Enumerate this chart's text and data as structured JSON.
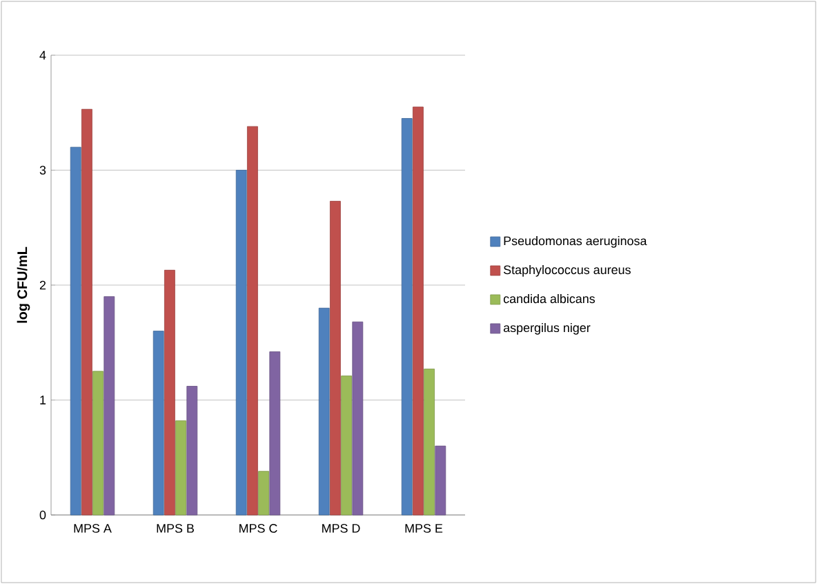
{
  "chart_data": {
    "type": "bar",
    "ylabel": "log CFU/mL",
    "categories": [
      "MPS A",
      "MPS B",
      "MPS C",
      "MPS D",
      "MPS E"
    ],
    "series": [
      {
        "name": "Pseudomonas aeruginosa",
        "color": "#4f81bd",
        "values": [
          3.2,
          1.6,
          3.0,
          1.8,
          3.45
        ]
      },
      {
        "name": "Staphylococcus aureus",
        "color": "#c0504d",
        "values": [
          3.53,
          2.13,
          3.38,
          2.73,
          3.55
        ]
      },
      {
        "name": "candida albicans",
        "color": "#9bbb59",
        "values": [
          1.25,
          0.82,
          0.38,
          1.21,
          1.27
        ]
      },
      {
        "name": "aspergilus niger",
        "color": "#8064a2",
        "values": [
          1.9,
          1.12,
          1.42,
          1.68,
          0.6
        ]
      }
    ],
    "ylim": [
      0,
      4
    ],
    "yticks": [
      0,
      1,
      2,
      3,
      4
    ],
    "grid": "y",
    "legend": "right"
  }
}
